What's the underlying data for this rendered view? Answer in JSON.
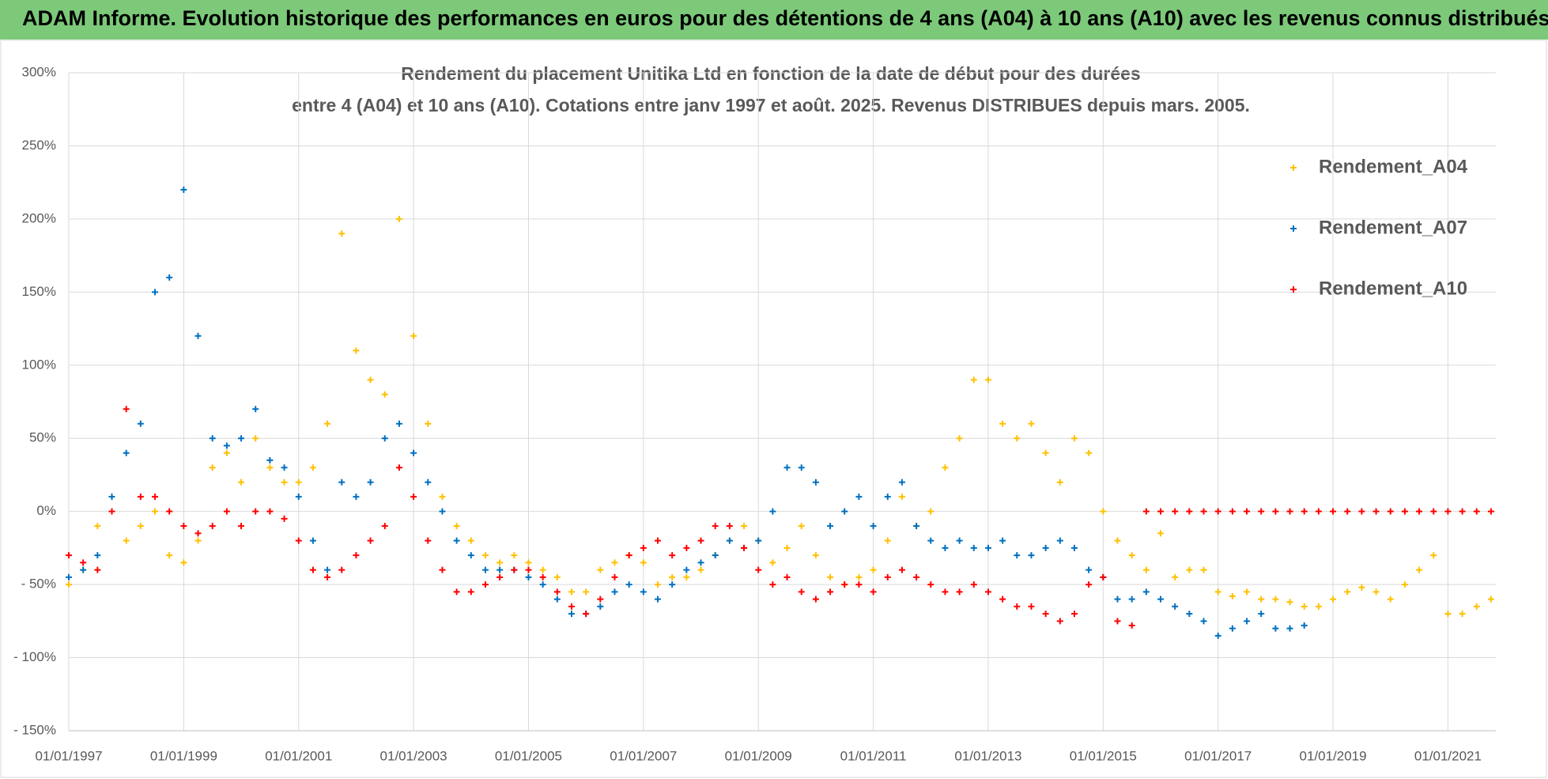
{
  "header": {
    "title": "ADAM Informe. Evolution historique des performances en euros pour des détentions de 4 ans (A04) à 10 ans (A10) avec les revenus connus distribués"
  },
  "chart_data": {
    "type": "scatter",
    "title": [
      "Rendement du placement Unitika Ltd en fonction de la date de début pour des durées",
      "entre 4 (A04) et 10 ans (A10). Cotations entre janv 1997 et août. 2025. Revenus DISTRIBUES depuis mars. 2005."
    ],
    "x": [
      "01/01/1997",
      "01/04/1997",
      "01/07/1997",
      "01/10/1997",
      "01/01/1998",
      "01/04/1998",
      "01/07/1998",
      "01/10/1998",
      "01/01/1999",
      "01/04/1999",
      "01/07/1999",
      "01/10/1999",
      "01/01/2000",
      "01/04/2000",
      "01/07/2000",
      "01/10/2000",
      "01/01/2001",
      "01/04/2001",
      "01/07/2001",
      "01/10/2001",
      "01/01/2002",
      "01/04/2002",
      "01/07/2002",
      "01/10/2002",
      "01/01/2003",
      "01/04/2003",
      "01/07/2003",
      "01/10/2003",
      "01/01/2004",
      "01/04/2004",
      "01/07/2004",
      "01/10/2004",
      "01/01/2005",
      "01/04/2005",
      "01/07/2005",
      "01/10/2005",
      "01/01/2006",
      "01/04/2006",
      "01/07/2006",
      "01/10/2006",
      "01/01/2007",
      "01/04/2007",
      "01/07/2007",
      "01/10/2007",
      "01/01/2008",
      "01/04/2008",
      "01/07/2008",
      "01/10/2008",
      "01/01/2009",
      "01/04/2009",
      "01/07/2009",
      "01/10/2009",
      "01/01/2010",
      "01/04/2010",
      "01/07/2010",
      "01/10/2010",
      "01/01/2011",
      "01/04/2011",
      "01/07/2011",
      "01/10/2011",
      "01/01/2012",
      "01/04/2012",
      "01/07/2012",
      "01/10/2012",
      "01/01/2013",
      "01/04/2013",
      "01/07/2013",
      "01/10/2013",
      "01/01/2014",
      "01/04/2014",
      "01/07/2014",
      "01/10/2014",
      "01/01/2015",
      "01/04/2015",
      "01/07/2015",
      "01/10/2015",
      "01/01/2016",
      "01/04/2016",
      "01/07/2016",
      "01/10/2016",
      "01/01/2017",
      "01/04/2017",
      "01/07/2017",
      "01/10/2017",
      "01/01/2018",
      "01/04/2018",
      "01/07/2018",
      "01/10/2018",
      "01/01/2019",
      "01/04/2019",
      "01/07/2019",
      "01/10/2019",
      "01/01/2020",
      "01/04/2020",
      "01/07/2020",
      "01/10/2020",
      "01/01/2021",
      "01/04/2021",
      "01/07/2021",
      "01/10/2021"
    ],
    "series": [
      {
        "name": "Rendement_A04",
        "color": "#ffc000",
        "values": [
          -50,
          -40,
          -10,
          10,
          -20,
          -10,
          0,
          -30,
          -35,
          -20,
          30,
          40,
          20,
          50,
          30,
          20,
          20,
          30,
          60,
          190,
          110,
          90,
          80,
          200,
          120,
          60,
          10,
          -10,
          -20,
          -30,
          -35,
          -30,
          -35,
          -40,
          -45,
          -55,
          -55,
          -40,
          -35,
          -30,
          -35,
          -50,
          -45,
          -45,
          -40,
          -30,
          -20,
          -10,
          -20,
          -35,
          -25,
          -10,
          -30,
          -45,
          -50,
          -45,
          -40,
          -20,
          10,
          -10,
          0,
          30,
          50,
          90,
          90,
          60,
          50,
          60,
          40,
          20,
          50,
          40,
          0,
          -20,
          -30,
          -40,
          -15,
          -45,
          -40,
          -40,
          -55,
          -58,
          -55,
          -60,
          -60,
          -62,
          -65,
          -65,
          -60,
          -55,
          -52,
          -55,
          -60,
          -50,
          -40,
          -30,
          -70,
          -70,
          -65,
          -60
        ]
      },
      {
        "name": "Rendement_A07",
        "color": "#0070c0",
        "values": [
          -45,
          -40,
          -30,
          10,
          40,
          60,
          150,
          160,
          220,
          120,
          50,
          45,
          50,
          70,
          35,
          30,
          10,
          -20,
          -40,
          20,
          10,
          20,
          50,
          60,
          40,
          20,
          0,
          -20,
          -30,
          -40,
          -40,
          -40,
          -45,
          -50,
          -60,
          -70,
          -70,
          -65,
          -55,
          -50,
          -55,
          -60,
          -50,
          -40,
          -35,
          -30,
          -20,
          -25,
          -20,
          0,
          30,
          30,
          20,
          -10,
          0,
          10,
          -10,
          10,
          20,
          -10,
          -20,
          -25,
          -20,
          -25,
          -25,
          -20,
          -30,
          -30,
          -25,
          -20,
          -25,
          -40,
          -45,
          -60,
          -60,
          -55,
          -60,
          -65,
          -70,
          -75,
          -85,
          -80,
          -75,
          -70,
          -80,
          -80,
          -78,
          null,
          null,
          null,
          null,
          null,
          null,
          null,
          null,
          null,
          null,
          null,
          null,
          null
        ]
      },
      {
        "name": "Rendement_A10",
        "color": "#ff0000",
        "values": [
          -30,
          -35,
          -40,
          0,
          70,
          10,
          10,
          0,
          -10,
          -15,
          -10,
          0,
          -10,
          0,
          0,
          -5,
          -20,
          -40,
          -45,
          -40,
          -30,
          -20,
          -10,
          30,
          10,
          -20,
          -40,
          -55,
          -55,
          -50,
          -45,
          -40,
          -40,
          -45,
          -55,
          -65,
          -70,
          -60,
          -45,
          -30,
          -25,
          -20,
          -30,
          -25,
          -20,
          -10,
          -10,
          -25,
          -40,
          -50,
          -45,
          -55,
          -60,
          -55,
          -50,
          -50,
          -55,
          -45,
          -40,
          -45,
          -50,
          -55,
          -55,
          -50,
          -55,
          -60,
          -65,
          -65,
          -70,
          -75,
          -70,
          -50,
          -45,
          -75,
          -78,
          0,
          0,
          0,
          0,
          0,
          0,
          0,
          0,
          0,
          0,
          0,
          0,
          0,
          0,
          0,
          0,
          0,
          0,
          0,
          0,
          0,
          0,
          0,
          0,
          0
        ]
      }
    ],
    "xlim": [
      "01/01/1997",
      "01/11/2021"
    ],
    "xticks": [
      "01/01/1997",
      "01/01/1999",
      "01/01/2001",
      "01/01/2003",
      "01/01/2005",
      "01/01/2007",
      "01/01/2009",
      "01/01/2011",
      "01/01/2013",
      "01/01/2015",
      "01/01/2017",
      "01/01/2019",
      "01/01/2021"
    ],
    "ylim": [
      -150,
      300
    ],
    "yticks": [
      {
        "value": -150,
        "label": "- 150%"
      },
      {
        "value": -100,
        "label": "- 100%"
      },
      {
        "value": -50,
        "label": "- 50%"
      },
      {
        "value": 0,
        "label": "0%"
      },
      {
        "value": 50,
        "label": "50%"
      },
      {
        "value": 100,
        "label": "100%"
      },
      {
        "value": 150,
        "label": "150%"
      },
      {
        "value": 200,
        "label": "200%"
      },
      {
        "value": 250,
        "label": "250%"
      },
      {
        "value": 300,
        "label": "300%"
      }
    ],
    "grid": true,
    "legend": "right"
  }
}
